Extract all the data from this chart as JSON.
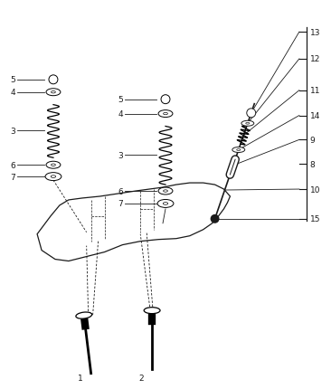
{
  "bg_color": "#ffffff",
  "line_color": "#1a1a1a",
  "fig_width": 3.66,
  "fig_height": 4.31,
  "dpi": 100,
  "fontsize": 6.5
}
